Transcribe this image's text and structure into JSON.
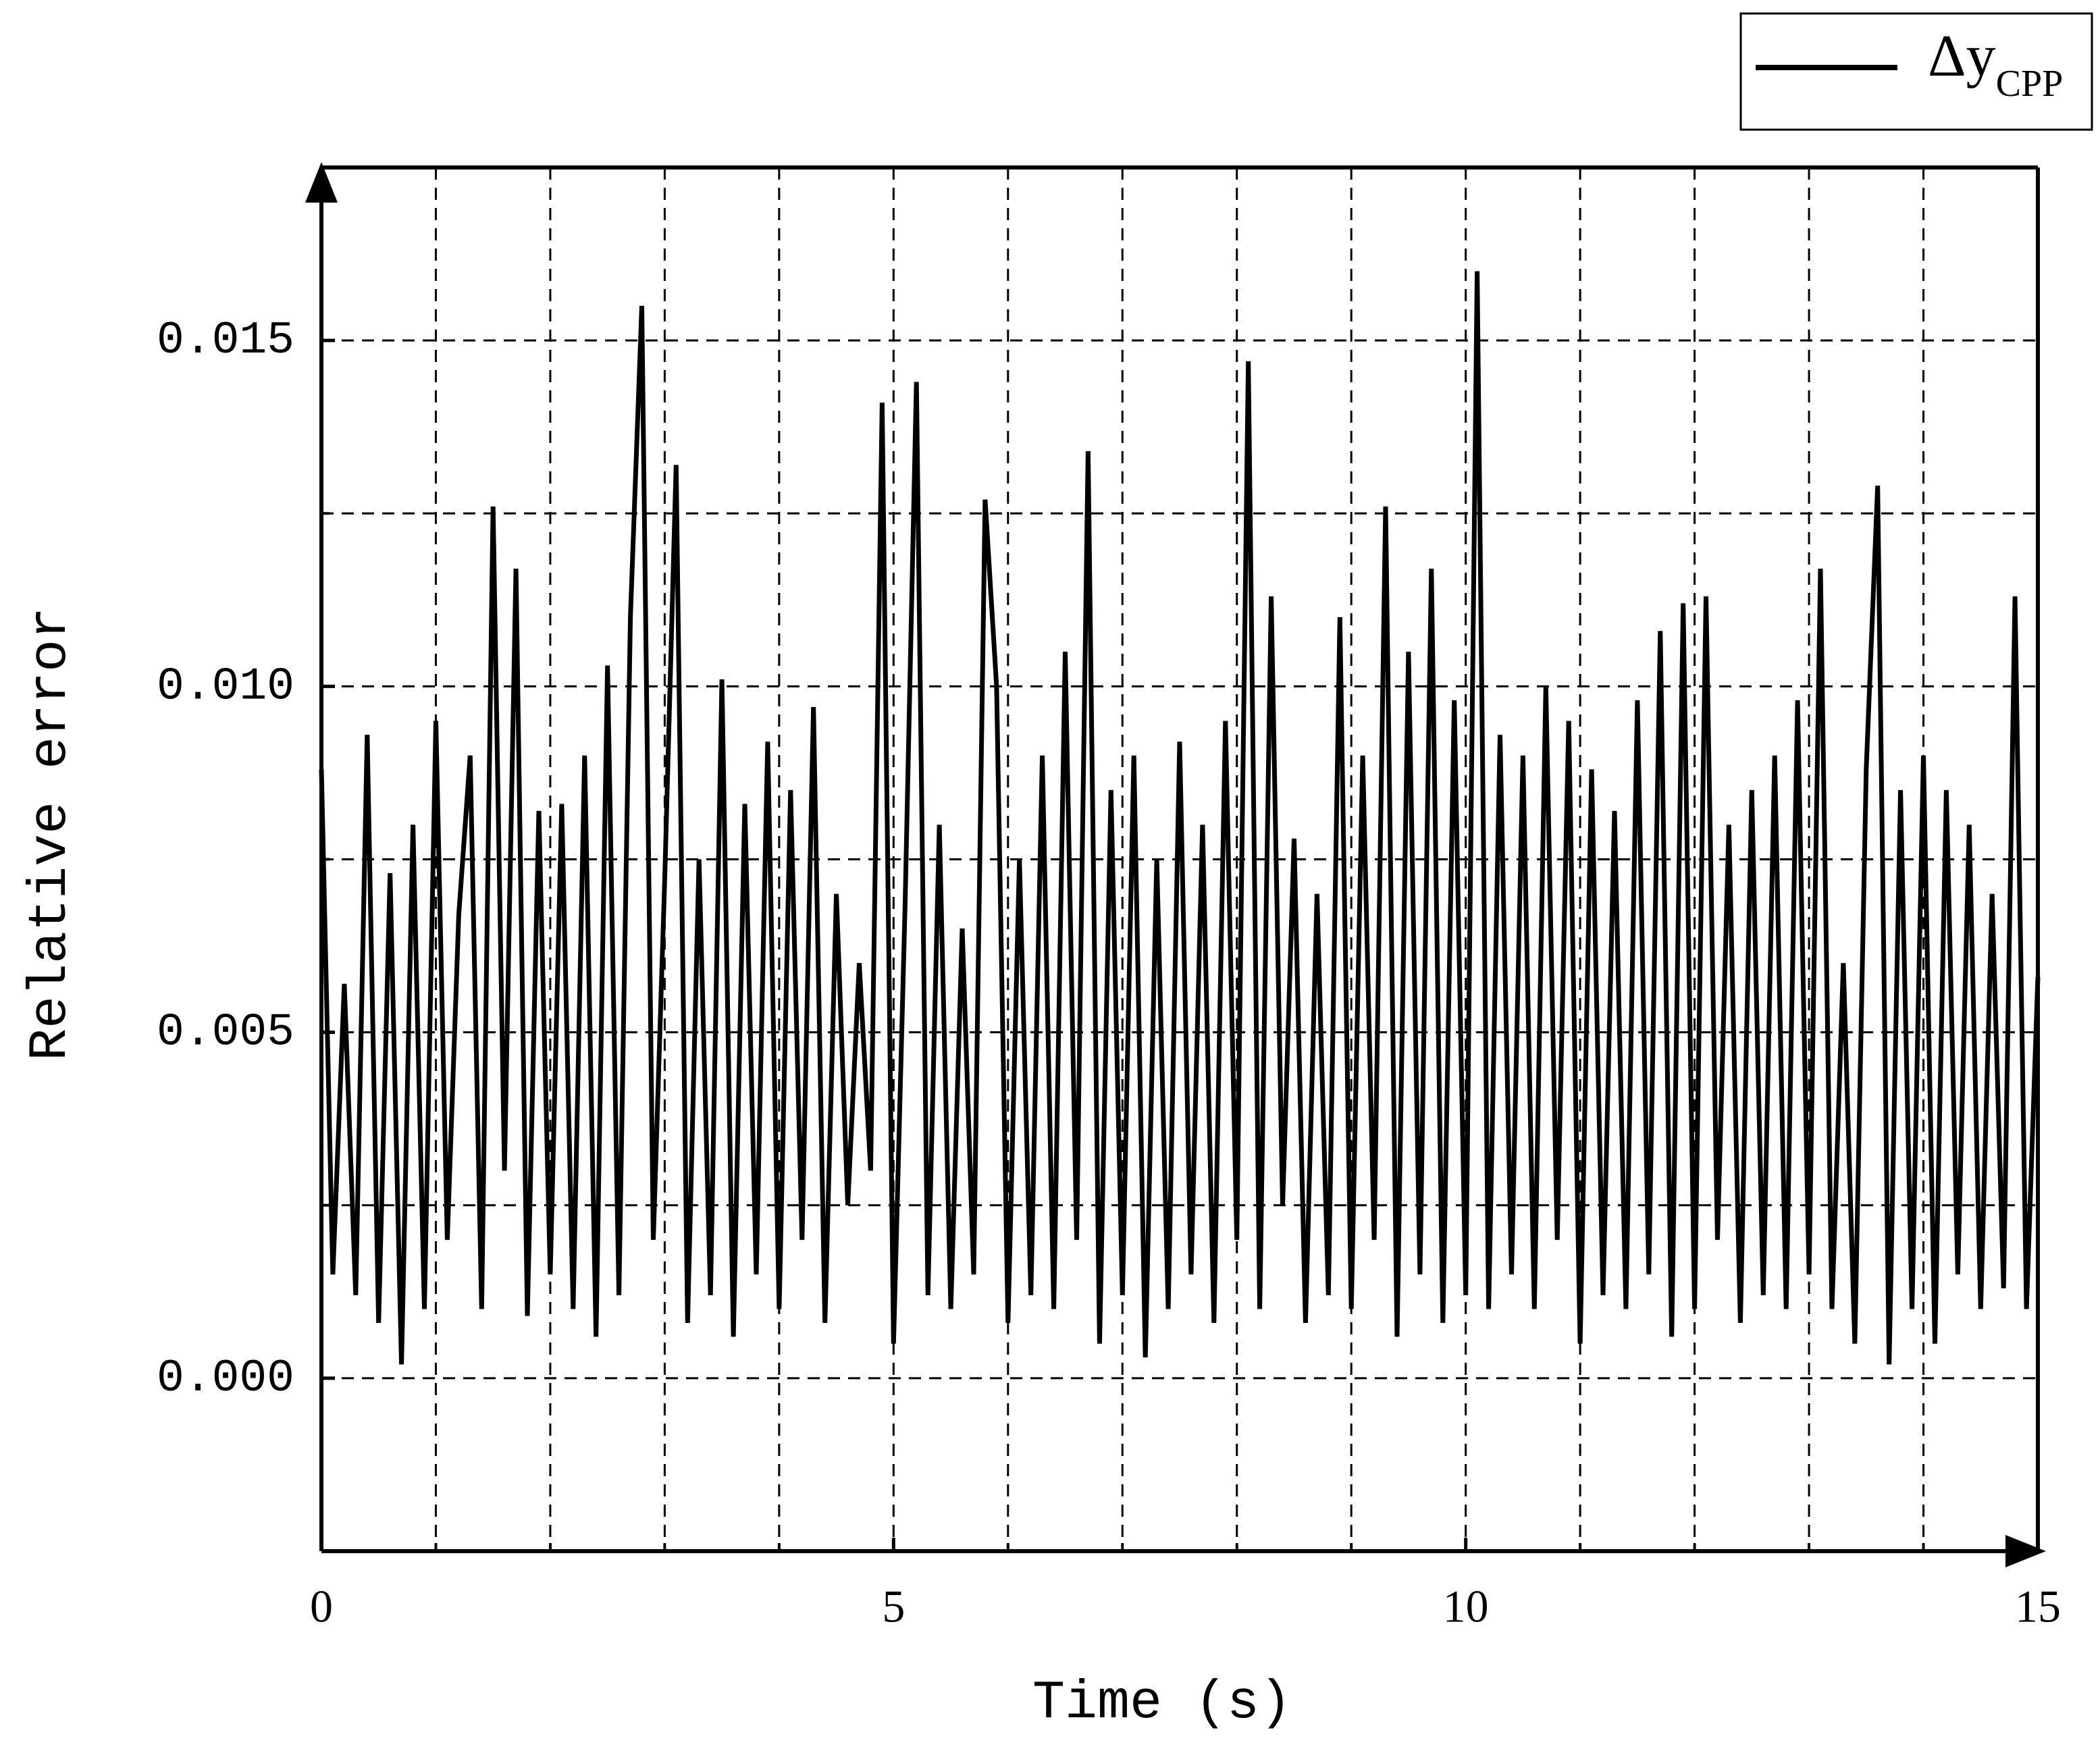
{
  "chart_data": {
    "type": "line",
    "x_label": "Time (s)",
    "y_label": "Relative error",
    "xlim": [
      0,
      15
    ],
    "ylim": [
      -0.0025,
      0.0175
    ],
    "xticks": [
      0,
      5,
      10,
      15
    ],
    "yticks": [
      {
        "value": 0,
        "label": "0.000"
      },
      {
        "value": 0.005,
        "label": "0.005"
      },
      {
        "value": 0.01,
        "label": "0.010"
      },
      {
        "value": 0.015,
        "label": "0.015"
      }
    ],
    "x_minor_ticks": [
      1,
      2,
      3,
      4,
      6,
      7,
      8,
      9,
      11,
      12,
      13,
      14
    ],
    "y_minor_ticks": [
      0.0025,
      0.0075,
      0.0125
    ],
    "grid": true,
    "legend_position": "top-right",
    "x": [
      0,
      0.1,
      0.2,
      0.3,
      0.4,
      0.5,
      0.6,
      0.7,
      0.8,
      0.9,
      1,
      1.1,
      1.2,
      1.3,
      1.4,
      1.5,
      1.6,
      1.7,
      1.8,
      1.9,
      2,
      2.1,
      2.2,
      2.3,
      2.4,
      2.5,
      2.6,
      2.7,
      2.8,
      2.9,
      3,
      3.1,
      3.2,
      3.3,
      3.4,
      3.5,
      3.6,
      3.7,
      3.8,
      3.9,
      4,
      4.1,
      4.2,
      4.3,
      4.4,
      4.5,
      4.6,
      4.7,
      4.8,
      4.9,
      5,
      5.1,
      5.2,
      5.3,
      5.4,
      5.5,
      5.6,
      5.7,
      5.8,
      5.9,
      6,
      6.1,
      6.2,
      6.3,
      6.4,
      6.5,
      6.6,
      6.7,
      6.8,
      6.9,
      7,
      7.1,
      7.2,
      7.3,
      7.4,
      7.5,
      7.6,
      7.7,
      7.8,
      7.9,
      8,
      8.1,
      8.2,
      8.3,
      8.4,
      8.5,
      8.6,
      8.7,
      8.8,
      8.9,
      9,
      9.1,
      9.2,
      9.3,
      9.4,
      9.5,
      9.6,
      9.7,
      9.8,
      9.9,
      10,
      10.1,
      10.2,
      10.3,
      10.4,
      10.5,
      10.6,
      10.7,
      10.8,
      10.9,
      11,
      11.1,
      11.2,
      11.3,
      11.4,
      11.5,
      11.6,
      11.7,
      11.8,
      11.9,
      12,
      12.1,
      12.2,
      12.3,
      12.4,
      12.5,
      12.6,
      12.7,
      12.8,
      12.9,
      13,
      13.1,
      13.2,
      13.3,
      13.4,
      13.5,
      13.6,
      13.7,
      13.8,
      13.9,
      14,
      14.1,
      14.2,
      14.3,
      14.4,
      14.5,
      14.6,
      14.7,
      14.8,
      14.9,
      15
    ],
    "series": [
      {
        "name": "Δy",
        "name_subscript": "CPP",
        "color": "#000000",
        "values": [
          0.0088,
          0.0015,
          0.0057,
          0.0012,
          0.0093,
          0.0008,
          0.0073,
          0.0002,
          0.008,
          0.001,
          0.0095,
          0.002,
          0.0067,
          0.009,
          0.001,
          0.0126,
          0.003,
          0.0117,
          0.0009,
          0.0082,
          0.0015,
          0.0083,
          0.001,
          0.009,
          0.0006,
          0.0103,
          0.0012,
          0.011,
          0.0155,
          0.002,
          0.0072,
          0.0132,
          0.0008,
          0.0075,
          0.0012,
          0.0101,
          0.0006,
          0.0083,
          0.0015,
          0.0092,
          0.001,
          0.0085,
          0.002,
          0.0097,
          0.0008,
          0.007,
          0.0025,
          0.006,
          0.003,
          0.0141,
          0.0005,
          0.0068,
          0.0144,
          0.0012,
          0.008,
          0.001,
          0.0065,
          0.0015,
          0.0127,
          0.01,
          0.0008,
          0.0075,
          0.0012,
          0.009,
          0.001,
          0.0105,
          0.002,
          0.0134,
          0.0005,
          0.0085,
          0.0012,
          0.009,
          0.0003,
          0.0075,
          0.001,
          0.0092,
          0.0015,
          0.008,
          0.0008,
          0.0095,
          0.002,
          0.0147,
          0.001,
          0.0113,
          0.0025,
          0.0078,
          0.0008,
          0.007,
          0.0012,
          0.011,
          0.001,
          0.009,
          0.002,
          0.0126,
          0.0006,
          0.0105,
          0.0015,
          0.0117,
          0.0008,
          0.0098,
          0.0012,
          0.016,
          0.001,
          0.0093,
          0.0015,
          0.009,
          0.001,
          0.01,
          0.002,
          0.0095,
          0.0005,
          0.0088,
          0.0012,
          0.0082,
          0.001,
          0.0098,
          0.0015,
          0.0108,
          0.0006,
          0.0112,
          0.001,
          0.0113,
          0.002,
          0.008,
          0.0008,
          0.0085,
          0.0012,
          0.009,
          0.001,
          0.0098,
          0.0015,
          0.0117,
          0.001,
          0.006,
          0.0005,
          0.0088,
          0.0129,
          0.0002,
          0.0085,
          0.001,
          0.009,
          0.0005,
          0.0085,
          0.0015,
          0.008,
          0.001,
          0.007,
          0.0013,
          0.0113,
          0.001,
          0.0058
        ]
      }
    ]
  }
}
